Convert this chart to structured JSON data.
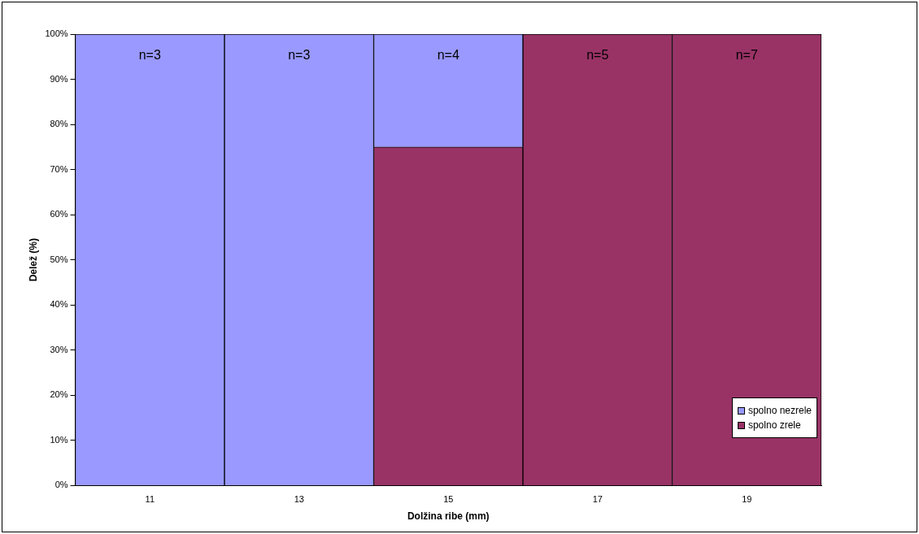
{
  "chart_data": {
    "type": "bar",
    "xlabel": "Dolžina ribe (mm)",
    "ylabel": "Delež (%)",
    "categories": [
      "11",
      "13",
      "15",
      "17",
      "19"
    ],
    "stacked": true,
    "series": [
      {
        "name": "spolno zrele",
        "color": "#993366",
        "values": [
          0,
          0,
          75,
          100,
          100
        ]
      },
      {
        "name": "spolno nezrele",
        "color": "#9999ff",
        "values": [
          100,
          100,
          25,
          0,
          0
        ]
      }
    ],
    "ylim": [
      0,
      100
    ],
    "yticks": [
      {
        "value": 0,
        "label": "0%"
      },
      {
        "value": 10,
        "label": "10%"
      },
      {
        "value": 20,
        "label": "20%"
      },
      {
        "value": 30,
        "label": "30%"
      },
      {
        "value": 40,
        "label": "40%"
      },
      {
        "value": 50,
        "label": "50%"
      },
      {
        "value": 60,
        "label": "60%"
      },
      {
        "value": 70,
        "label": "70%"
      },
      {
        "value": 80,
        "label": "80%"
      },
      {
        "value": 90,
        "label": "90%"
      },
      {
        "value": 100,
        "label": "100%"
      }
    ],
    "legend": "bottom right",
    "annotations": [
      "n=3",
      "n=3",
      "n=4",
      "n=5",
      "n=7"
    ]
  }
}
